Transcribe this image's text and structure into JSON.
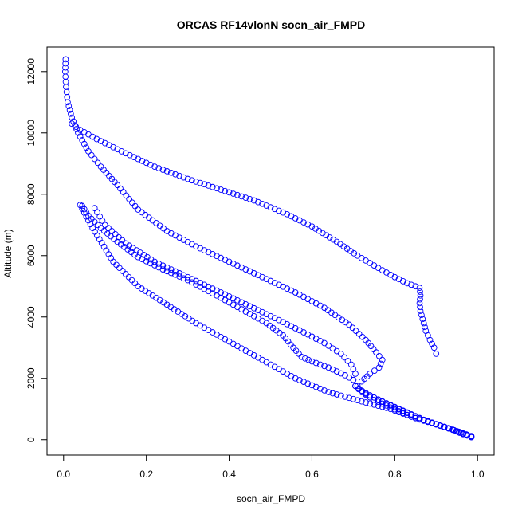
{
  "chart_data": {
    "type": "scatter",
    "title": "ORCAS RF14vlonN socn_air_FMPD",
    "xlabel": "socn_air_FMPD",
    "ylabel": "Altitude (m)",
    "xlim": [
      -0.04,
      1.04
    ],
    "ylim": [
      -500,
      12800
    ],
    "xticks": [
      0.0,
      0.2,
      0.4,
      0.6,
      0.8,
      1.0
    ],
    "xtick_labels": [
      "0.0",
      "0.2",
      "0.4",
      "0.6",
      "0.8",
      "1.0"
    ],
    "yticks": [
      0,
      2000,
      4000,
      6000,
      8000,
      10000,
      12000
    ],
    "ytick_labels": [
      "0",
      "2000",
      "4000",
      "6000",
      "8000",
      "10000",
      "12000"
    ],
    "grid": false,
    "marker": "open-circle",
    "color": "#0000ff",
    "series": [
      {
        "points": [
          [
            0.005,
            12400
          ],
          [
            0.004,
            12000
          ],
          [
            0.006,
            11500
          ],
          [
            0.01,
            11000
          ],
          [
            0.02,
            10500
          ],
          [
            0.035,
            10000
          ],
          [
            0.06,
            9400
          ],
          [
            0.09,
            8900
          ],
          [
            0.13,
            8300
          ],
          [
            0.18,
            7500
          ],
          [
            0.25,
            6800
          ],
          [
            0.32,
            6300
          ],
          [
            0.4,
            5800
          ],
          [
            0.48,
            5300
          ],
          [
            0.56,
            4800
          ],
          [
            0.63,
            4300
          ],
          [
            0.69,
            3750
          ],
          [
            0.73,
            3250
          ],
          [
            0.755,
            2850
          ],
          [
            0.77,
            2600
          ],
          [
            0.762,
            2350
          ],
          [
            0.74,
            2150
          ],
          [
            0.72,
            1900
          ],
          [
            0.71,
            1750
          ],
          [
            0.72,
            1600
          ],
          [
            0.76,
            1300
          ],
          [
            0.8,
            1050
          ],
          [
            0.85,
            750
          ],
          [
            0.9,
            500
          ],
          [
            0.94,
            320
          ],
          [
            0.965,
            180
          ],
          [
            0.985,
            100
          ]
        ]
      },
      {
        "points": [
          [
            0.045,
            7620
          ],
          [
            0.06,
            7300
          ],
          [
            0.09,
            6900
          ],
          [
            0.13,
            6450
          ],
          [
            0.18,
            5950
          ],
          [
            0.24,
            5550
          ],
          [
            0.3,
            5200
          ],
          [
            0.37,
            4700
          ],
          [
            0.43,
            4250
          ],
          [
            0.49,
            3800
          ],
          [
            0.53,
            3400
          ],
          [
            0.555,
            3000
          ],
          [
            0.575,
            2700
          ],
          [
            0.6,
            2550
          ],
          [
            0.64,
            2350
          ],
          [
            0.68,
            2100
          ],
          [
            0.7,
            1950
          ],
          [
            0.705,
            1750
          ],
          [
            0.72,
            1550
          ],
          [
            0.75,
            1300
          ],
          [
            0.79,
            1050
          ],
          [
            0.84,
            750
          ],
          [
            0.89,
            550
          ],
          [
            0.93,
            380
          ],
          [
            0.96,
            230
          ],
          [
            0.985,
            120
          ]
        ]
      },
      {
        "points": [
          [
            0.075,
            7550
          ],
          [
            0.1,
            7000
          ],
          [
            0.15,
            6400
          ],
          [
            0.22,
            5800
          ],
          [
            0.3,
            5300
          ],
          [
            0.38,
            4800
          ],
          [
            0.45,
            4350
          ],
          [
            0.52,
            3900
          ],
          [
            0.58,
            3500
          ],
          [
            0.63,
            3150
          ],
          [
            0.67,
            2800
          ],
          [
            0.695,
            2450
          ],
          [
            0.705,
            2150
          ],
          [
            0.7,
            1950
          ],
          [
            0.705,
            1750
          ],
          [
            0.73,
            1500
          ],
          [
            0.77,
            1250
          ],
          [
            0.82,
            950
          ],
          [
            0.87,
            650
          ],
          [
            0.92,
            420
          ],
          [
            0.955,
            260
          ],
          [
            0.985,
            110
          ]
        ]
      },
      {
        "points": [
          [
            0.04,
            7650
          ],
          [
            0.07,
            6900
          ],
          [
            0.12,
            5800
          ],
          [
            0.18,
            5000
          ],
          [
            0.25,
            4400
          ],
          [
            0.32,
            3800
          ],
          [
            0.4,
            3200
          ],
          [
            0.48,
            2600
          ],
          [
            0.56,
            2000
          ],
          [
            0.64,
            1550
          ],
          [
            0.72,
            1250
          ],
          [
            0.79,
            1000
          ],
          [
            0.85,
            700
          ],
          [
            0.9,
            500
          ],
          [
            0.94,
            330
          ],
          [
            0.965,
            200
          ],
          [
            0.985,
            80
          ]
        ]
      },
      {
        "points": [
          [
            0.02,
            10300
          ],
          [
            0.04,
            10100
          ],
          [
            0.08,
            9800
          ],
          [
            0.14,
            9400
          ],
          [
            0.22,
            8900
          ],
          [
            0.3,
            8500
          ],
          [
            0.38,
            8150
          ],
          [
            0.46,
            7800
          ],
          [
            0.54,
            7350
          ],
          [
            0.6,
            6950
          ],
          [
            0.66,
            6450
          ],
          [
            0.71,
            6000
          ],
          [
            0.76,
            5600
          ],
          [
            0.8,
            5300
          ],
          [
            0.83,
            5100
          ],
          [
            0.86,
            4950
          ],
          [
            0.862,
            4700
          ],
          [
            0.86,
            4450
          ],
          [
            0.862,
            4200
          ],
          [
            0.87,
            3800
          ],
          [
            0.875,
            3550
          ],
          [
            0.885,
            3250
          ],
          [
            0.895,
            3000
          ],
          [
            0.9,
            2800
          ]
        ]
      }
    ]
  }
}
